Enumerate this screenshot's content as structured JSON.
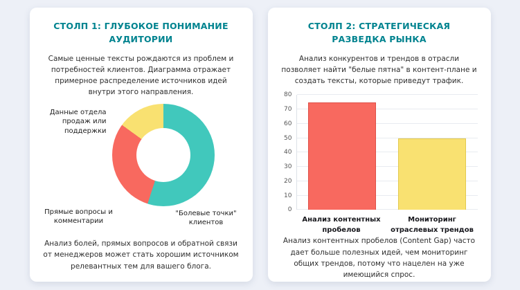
{
  "colors": {
    "page_bg": "#EDF0F7",
    "card_bg": "#FFFFFF",
    "title_accent": "#00838F",
    "body_text": "#2F2F2F"
  },
  "card1": {
    "title": "СТОЛП 1: ГЛУБОКОЕ ПОНИМАНИЕ АУДИТОРИИ",
    "intro": "Самые ценные тексты рождаются из проблем и потребностей клиентов. Диаграмма отражает примерное распределение источников идей внутри этого направления.",
    "footer": "Анализ болей, прямых вопросов и обратной связи от менеджеров может стать хорошим источником релевантных тем для вашего блога."
  },
  "card2": {
    "title": "СТОЛП 2: СТРАТЕГИЧЕСКАЯ РАЗВЕДКА РЫНКА",
    "intro": "Анализ конкурентов и трендов в отрасли позволяет найти \"белые пятна\" в контент-плане и создать тексты, которые приведут трафик.",
    "footer": "Анализ контентных пробелов (Content Gap) часто дает больше полезных идей, чем мониторинг общих трендов, потому что нацелен на уже имеющийся спрос."
  },
  "chart_data": [
    {
      "type": "pie",
      "donut": true,
      "labels": [
        "\"Болевые точки\" клиентов",
        "Прямые вопросы и комментарии",
        "Данные отдела продаж или поддержки"
      ],
      "values": [
        55,
        30,
        15
      ],
      "colors": [
        "#41C8BC",
        "#F8695F",
        "#F9E171"
      ],
      "legend_position": "around"
    },
    {
      "type": "bar",
      "categories": [
        "Анализ контентных пробелов",
        "Мониторинг отраслевых трендов"
      ],
      "values": [
        75,
        50
      ],
      "colors": [
        "#F8695F",
        "#F9E171"
      ],
      "border_colors": [
        "#DE5048",
        "#E2C94F"
      ],
      "ylim": [
        0,
        80
      ],
      "yticks": [
        0,
        10,
        20,
        30,
        40,
        50,
        60,
        70,
        80
      ],
      "grid": true
    }
  ]
}
